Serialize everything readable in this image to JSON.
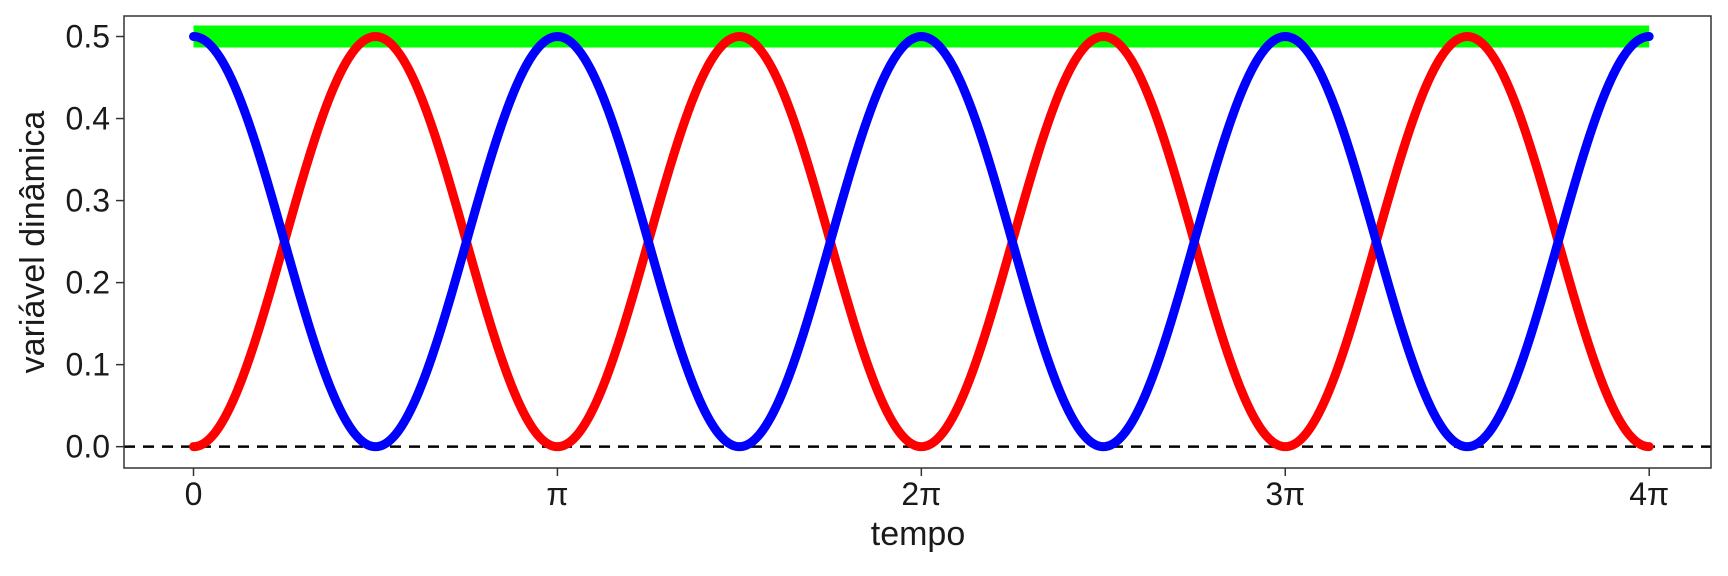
{
  "chart_data": {
    "type": "line",
    "xlabel": "tempo",
    "ylabel": "variável dinâmica",
    "xlim": [
      -0.6,
      13.1
    ],
    "ylim": [
      -0.026,
      0.525
    ],
    "x_ticks": [
      {
        "value": 0,
        "label": "0"
      },
      {
        "value": 3.14159,
        "label": "π"
      },
      {
        "value": 6.28319,
        "label": "2π"
      },
      {
        "value": 9.42478,
        "label": "3π"
      },
      {
        "value": 12.56637,
        "label": "4π"
      }
    ],
    "y_ticks": [
      {
        "value": 0.0,
        "label": "0.0"
      },
      {
        "value": 0.1,
        "label": "0.1"
      },
      {
        "value": 0.2,
        "label": "0.2"
      },
      {
        "value": 0.3,
        "label": "0.3"
      },
      {
        "value": 0.4,
        "label": "0.4"
      },
      {
        "value": 0.5,
        "label": "0.5"
      }
    ],
    "grid": false,
    "legend": "none",
    "series": [
      {
        "color": "#ff0000",
        "function": "0.5*sin(t)^2",
        "x_range": [
          0,
          12.56637
        ],
        "peak": 0.5,
        "trough": 0.0
      },
      {
        "color": "#0000ff",
        "function": "0.5*cos(t)^2",
        "x_range": [
          0,
          12.56637
        ],
        "peak": 0.5,
        "trough": 0.0
      },
      {
        "color": "#00ff00",
        "function": "constant",
        "x_range": [
          0,
          12.56637
        ],
        "value": 0.5
      }
    ],
    "reference_line": {
      "y": 0,
      "style": "dashed",
      "color": "#000000"
    }
  }
}
